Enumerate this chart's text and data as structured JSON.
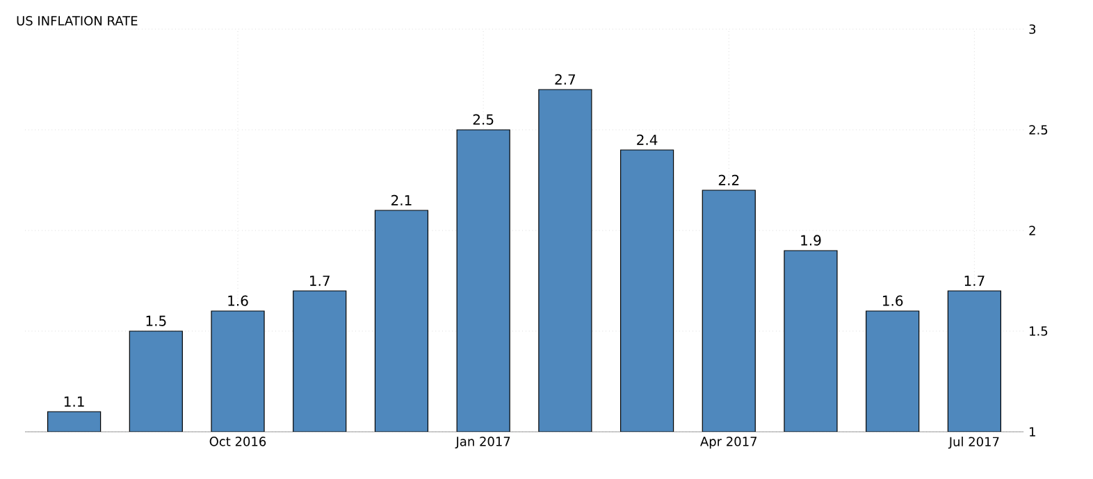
{
  "chart_data": {
    "type": "bar",
    "title": "US INFLATION RATE",
    "categories": [
      null,
      null,
      "Oct 2016",
      null,
      null,
      "Jan 2017",
      null,
      null,
      "Apr 2017",
      null,
      null,
      "Jul 2017"
    ],
    "values": [
      1.1,
      1.5,
      1.6,
      1.7,
      2.1,
      2.5,
      2.7,
      2.4,
      2.2,
      1.9,
      1.6,
      1.7
    ],
    "color": "#4f88bd",
    "ylim": [
      1,
      3
    ],
    "yticks": [
      1,
      1.5,
      2,
      2.5,
      3
    ],
    "grid": true,
    "data_labels": true
  }
}
